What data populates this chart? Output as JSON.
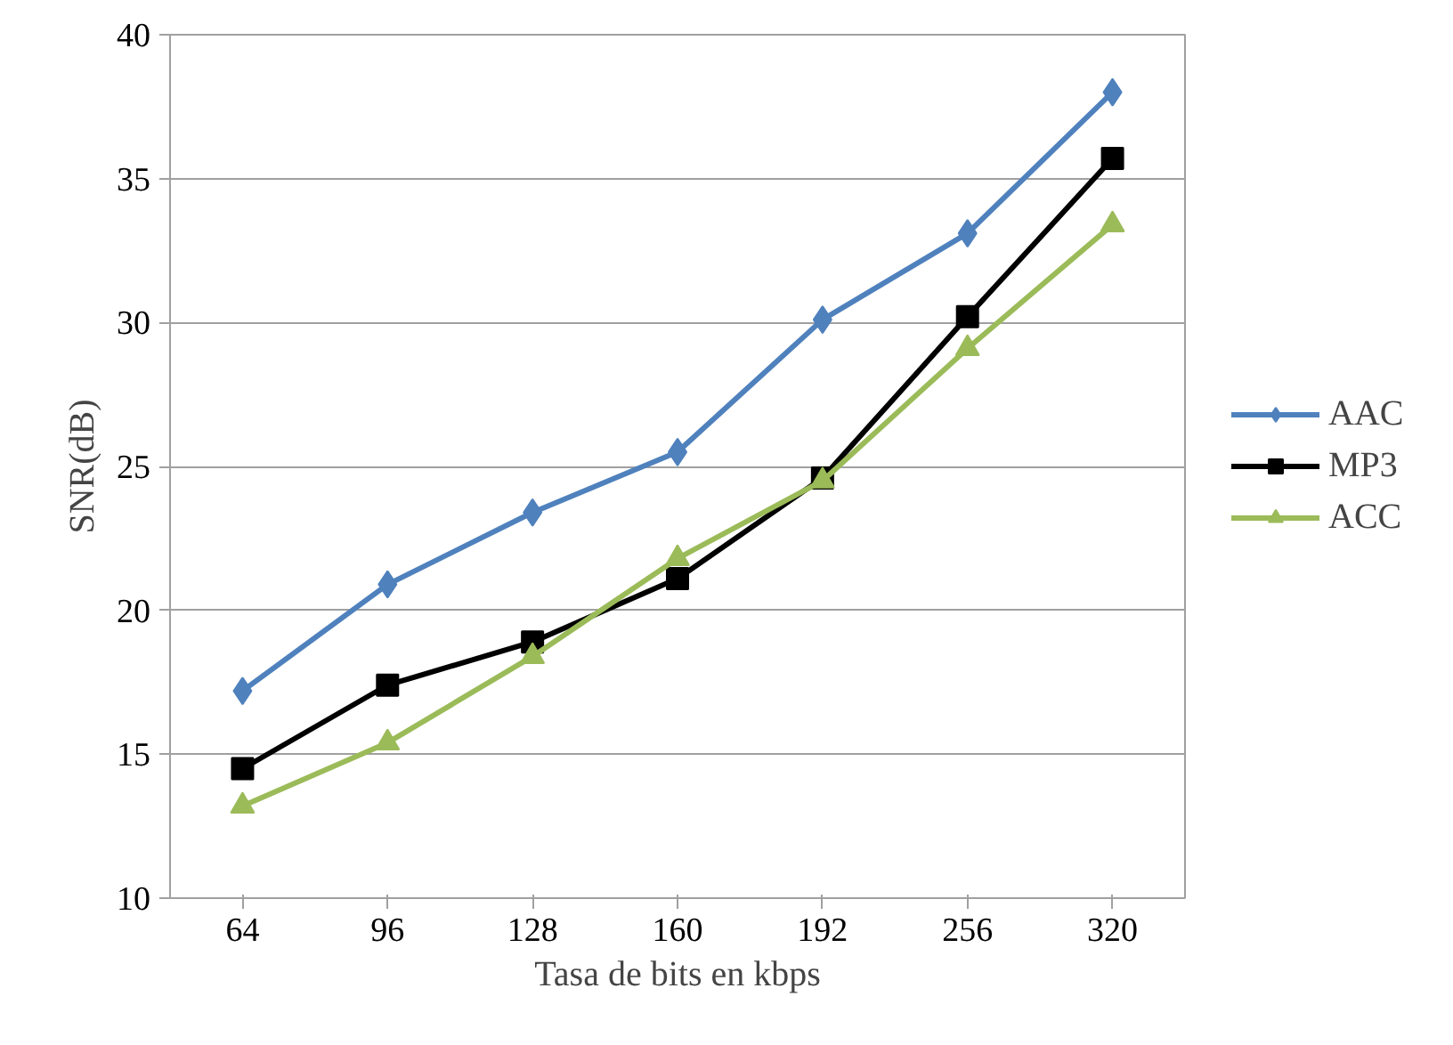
{
  "chart_data": {
    "type": "line",
    "xlabel": "Tasa de bits en kbps",
    "ylabel": "SNR(dB)",
    "categories": [
      "64",
      "96",
      "128",
      "160",
      "192",
      "256",
      "320"
    ],
    "ylim": [
      10,
      40
    ],
    "yticks": [
      10,
      15,
      20,
      25,
      30,
      35,
      40
    ],
    "grid": "y",
    "legend": "right",
    "series": [
      {
        "name": "AAC",
        "color": "#4f81bd",
        "marker": "diamond",
        "values": [
          17.2,
          20.9,
          23.4,
          25.5,
          30.1,
          33.1,
          38.0
        ]
      },
      {
        "name": "MP3",
        "color": "#000000",
        "marker": "square",
        "values": [
          14.5,
          17.4,
          18.9,
          21.1,
          24.6,
          30.2,
          35.7
        ]
      },
      {
        "name": "ACC",
        "color": "#9bbb59",
        "marker": "triangle",
        "values": [
          13.2,
          15.4,
          18.4,
          21.8,
          24.5,
          29.1,
          33.4
        ]
      }
    ]
  }
}
